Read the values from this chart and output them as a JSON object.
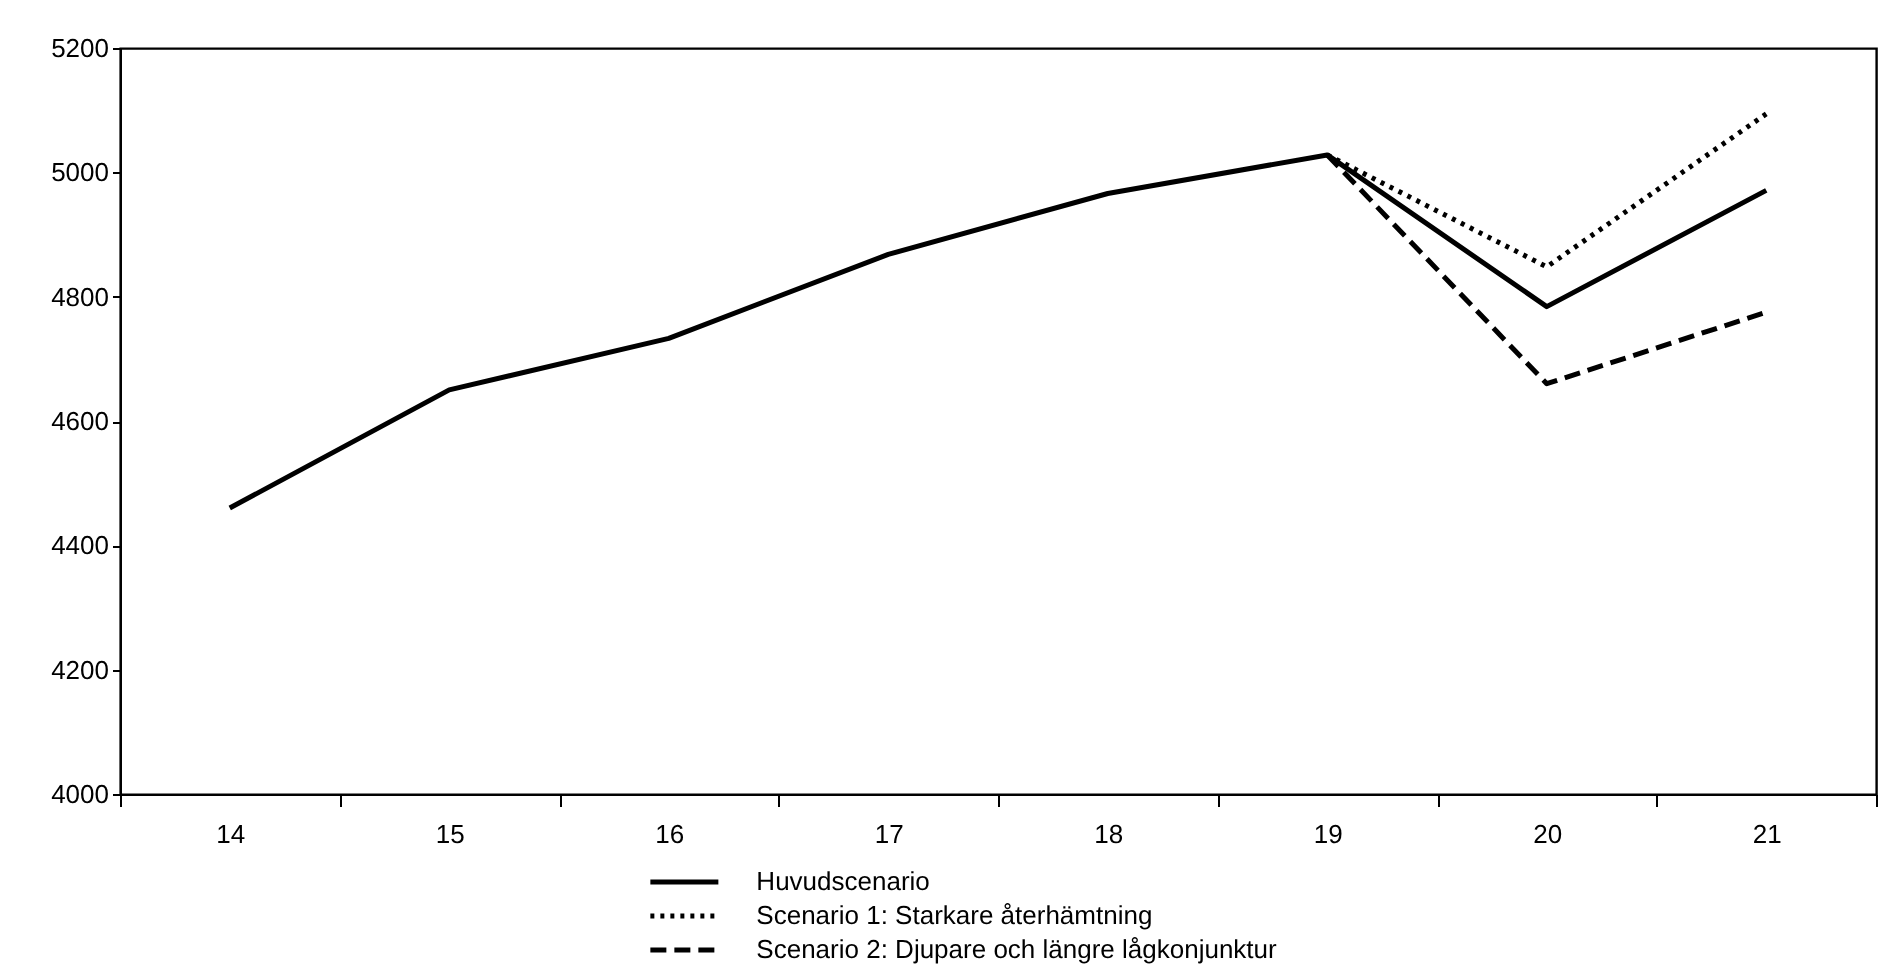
{
  "chart_data": {
    "type": "line",
    "categories": [
      "14",
      "15",
      "16",
      "17",
      "18",
      "19",
      "20",
      "21"
    ],
    "series": [
      {
        "name": "Huvudscenario",
        "color": "#000000",
        "line_style": "solid",
        "values": [
          4460,
          4650,
          4733,
          4868,
          4966,
          5028,
          4784,
          4971
        ]
      },
      {
        "name": "Scenario 1: Starkare återhämtning",
        "color": "#000000",
        "line_style": "dotted",
        "values": [
          null,
          null,
          null,
          null,
          null,
          5028,
          4848,
          5094
        ]
      },
      {
        "name": "Scenario 2: Djupare och längre lågkonjunktur",
        "color": "#000000",
        "line_style": "dashed",
        "values": [
          null,
          null,
          null,
          null,
          null,
          5028,
          4660,
          4775
        ]
      }
    ],
    "ylim": [
      4000,
      5200
    ],
    "yticks": [
      4000,
      4200,
      4400,
      4600,
      4800,
      5000,
      5200
    ],
    "grid": false,
    "legend": "bottom"
  }
}
